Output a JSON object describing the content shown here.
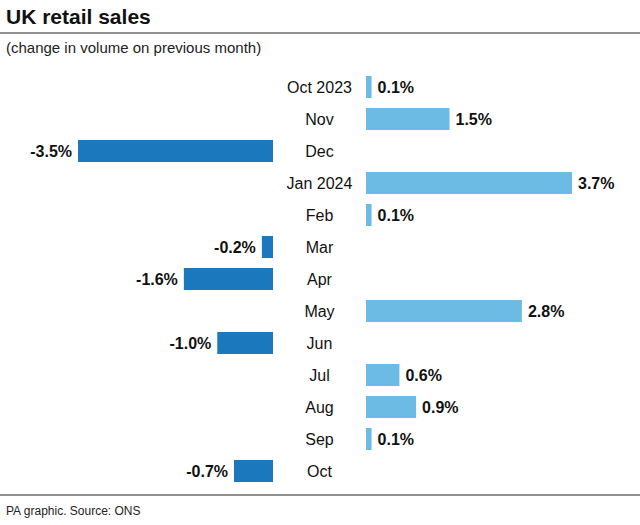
{
  "chart_data": {
    "type": "bar",
    "orientation": "horizontal",
    "title": "UK retail sales",
    "subtitle": "(change in volume on previous month)",
    "source": "PA graphic. Source: ONS",
    "categories": [
      "Oct 2023",
      "Nov",
      "Dec",
      "Jan 2024",
      "Feb",
      "Mar",
      "Apr",
      "May",
      "Jun",
      "Jul",
      "Aug",
      "Sep",
      "Oct"
    ],
    "values": [
      0.1,
      1.5,
      -3.5,
      3.7,
      0.1,
      -0.2,
      -1.6,
      2.8,
      -1.0,
      0.6,
      0.9,
      0.1,
      -0.7
    ],
    "value_labels": [
      "0.1%",
      "1.5%",
      "-3.5%",
      "3.7%",
      "0.1%",
      "-0.2%",
      "-1.6%",
      "2.8%",
      "-1.0%",
      "0.6%",
      "0.9%",
      "0.1%",
      "-0.7%"
    ],
    "colors": [
      "#6bbbe4",
      "#6bbbe4",
      "#1c78bd",
      "#6bbbe4",
      "#6bbbe4",
      "#1c78bd",
      "#1c78bd",
      "#6bbbe4",
      "#1c78bd",
      "#6bbbe4",
      "#6bbbe4",
      "#6bbbe4",
      "#1c78bd"
    ],
    "ylim": [
      -3.5,
      3.7
    ],
    "data_labels": true,
    "tick_labels": false,
    "grid": false
  }
}
